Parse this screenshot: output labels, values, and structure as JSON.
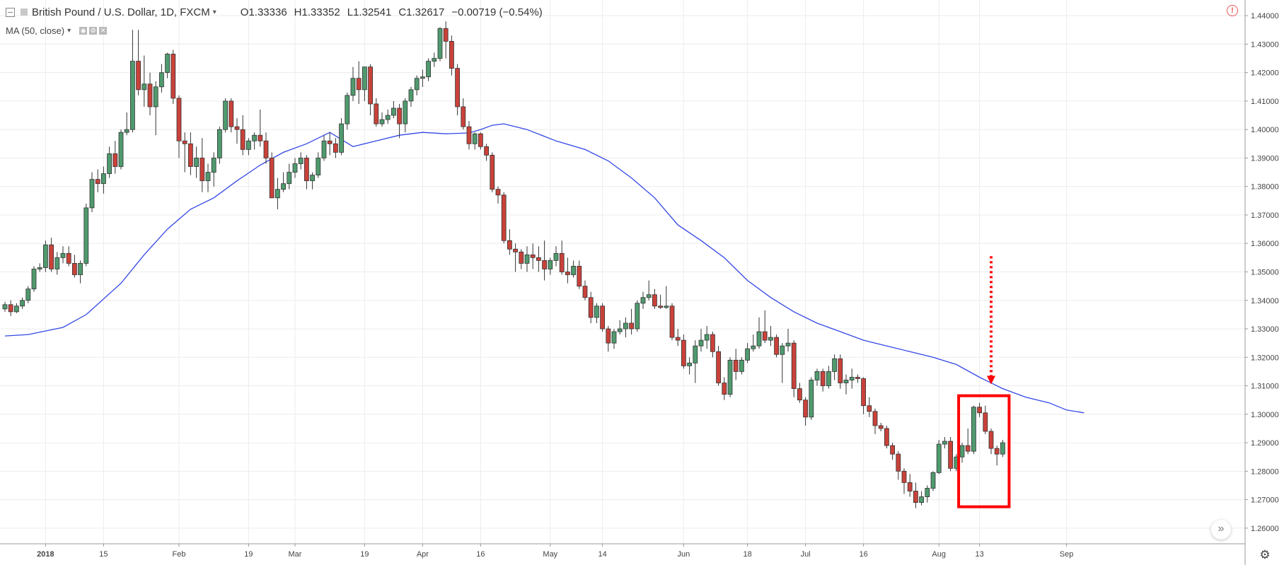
{
  "legend": {
    "symbol": "British Pound / U.S. Dollar, 1D, FXCM",
    "open": "O1.33336",
    "high": "H1.33352",
    "low": "L1.32541",
    "close": "C1.32617",
    "change": "−0.00719 (−0.54%)",
    "indicator": "MA (50, close)"
  },
  "icons": {
    "collapse": "collapse-icon",
    "dropdown": "chevron-down-icon",
    "warning": "warning-icon",
    "scroll": "scroll-to-latest-icon",
    "settings": "gear-icon"
  },
  "colors": {
    "up": "#4f9a6e",
    "down": "#c9423a",
    "ma": "#3347e6",
    "highlight": "#ff0000",
    "grid": "#ececec",
    "axis_text": "#444444"
  },
  "chart_data": {
    "type": "candlestick",
    "pair": "GBP/USD",
    "timeframe": "1D",
    "y_ticks": [
      "1.26000",
      "1.27000",
      "1.28000",
      "1.29000",
      "1.30000",
      "1.31000",
      "1.32000",
      "1.33000",
      "1.34000",
      "1.35000",
      "1.36000",
      "1.37000",
      "1.38000",
      "1.39000",
      "1.40000",
      "1.41000",
      "1.42000",
      "1.43000",
      "1.44000"
    ],
    "ylim": [
      1.2545,
      1.4455
    ],
    "x_labels": [
      {
        "label": "2018",
        "index": 7,
        "bold": true
      },
      {
        "label": "15",
        "index": 17
      },
      {
        "label": "Feb",
        "index": 30
      },
      {
        "label": "19",
        "index": 42
      },
      {
        "label": "Mar",
        "index": 50
      },
      {
        "label": "19",
        "index": 62
      },
      {
        "label": "Apr",
        "index": 72
      },
      {
        "label": "16",
        "index": 82
      },
      {
        "label": "May",
        "index": 94
      },
      {
        "label": "14",
        "index": 103
      },
      {
        "label": "Jun",
        "index": 117
      },
      {
        "label": "18",
        "index": 128
      },
      {
        "label": "Jul",
        "index": 138
      },
      {
        "label": "16",
        "index": 148
      },
      {
        "label": "Aug",
        "index": 161
      },
      {
        "label": "13",
        "index": 168
      },
      {
        "label": "Sep",
        "index": 183
      }
    ],
    "candles": [
      [
        1.337,
        1.3395,
        1.336,
        1.3385
      ],
      [
        1.3385,
        1.34,
        1.3345,
        1.336
      ],
      [
        1.336,
        1.339,
        1.3355,
        1.338
      ],
      [
        1.338,
        1.341,
        1.337,
        1.34
      ],
      [
        1.34,
        1.345,
        1.339,
        1.344
      ],
      [
        1.344,
        1.352,
        1.343,
        1.351
      ],
      [
        1.351,
        1.353,
        1.35,
        1.3515
      ],
      [
        1.3515,
        1.361,
        1.35,
        1.3595
      ],
      [
        1.3595,
        1.362,
        1.35,
        1.351
      ],
      [
        1.351,
        1.357,
        1.349,
        1.355
      ],
      [
        1.355,
        1.359,
        1.353,
        1.3565
      ],
      [
        1.3565,
        1.359,
        1.352,
        1.353
      ],
      [
        1.353,
        1.356,
        1.348,
        1.349
      ],
      [
        1.349,
        1.354,
        1.346,
        1.353
      ],
      [
        1.353,
        1.374,
        1.352,
        1.3725
      ],
      [
        1.3725,
        1.385,
        1.371,
        1.3825
      ],
      [
        1.3825,
        1.386,
        1.378,
        1.381
      ],
      [
        1.381,
        1.387,
        1.3775,
        1.3845
      ],
      [
        1.3845,
        1.394,
        1.383,
        1.3915
      ],
      [
        1.3915,
        1.396,
        1.3845,
        1.387
      ],
      [
        1.387,
        1.4,
        1.386,
        1.399
      ],
      [
        1.399,
        1.406,
        1.398,
        1.4
      ],
      [
        1.4,
        1.435,
        1.399,
        1.424
      ],
      [
        1.424,
        1.435,
        1.412,
        1.414
      ],
      [
        1.414,
        1.426,
        1.408,
        1.416
      ],
      [
        1.416,
        1.42,
        1.405,
        1.408
      ],
      [
        1.408,
        1.417,
        1.398,
        1.415
      ],
      [
        1.415,
        1.423,
        1.413,
        1.42
      ],
      [
        1.42,
        1.427,
        1.418,
        1.4265
      ],
      [
        1.4265,
        1.428,
        1.409,
        1.411
      ],
      [
        1.411,
        1.412,
        1.39,
        1.396
      ],
      [
        1.396,
        1.399,
        1.385,
        1.395
      ],
      [
        1.395,
        1.399,
        1.384,
        1.387
      ],
      [
        1.387,
        1.394,
        1.383,
        1.39
      ],
      [
        1.39,
        1.397,
        1.378,
        1.382
      ],
      [
        1.382,
        1.388,
        1.378,
        1.385
      ],
      [
        1.385,
        1.392,
        1.38,
        1.39
      ],
      [
        1.39,
        1.401,
        1.388,
        1.4
      ],
      [
        1.4,
        1.411,
        1.399,
        1.41
      ],
      [
        1.41,
        1.411,
        1.399,
        1.401
      ],
      [
        1.401,
        1.404,
        1.395,
        1.4
      ],
      [
        1.4,
        1.405,
        1.391,
        1.393
      ],
      [
        1.393,
        1.397,
        1.391,
        1.396
      ],
      [
        1.396,
        1.399,
        1.393,
        1.398
      ],
      [
        1.398,
        1.407,
        1.394,
        1.396
      ],
      [
        1.396,
        1.399,
        1.388,
        1.39
      ],
      [
        1.39,
        1.392,
        1.376,
        1.376
      ],
      [
        1.376,
        1.383,
        1.372,
        1.379
      ],
      [
        1.379,
        1.385,
        1.378,
        1.381
      ],
      [
        1.381,
        1.388,
        1.379,
        1.385
      ],
      [
        1.385,
        1.39,
        1.383,
        1.388
      ],
      [
        1.388,
        1.392,
        1.386,
        1.39
      ],
      [
        1.39,
        1.391,
        1.379,
        1.382
      ],
      [
        1.382,
        1.385,
        1.379,
        1.384
      ],
      [
        1.384,
        1.392,
        1.383,
        1.39
      ],
      [
        1.39,
        1.398,
        1.389,
        1.396
      ],
      [
        1.396,
        1.399,
        1.391,
        1.395
      ],
      [
        1.395,
        1.397,
        1.39,
        1.392
      ],
      [
        1.392,
        1.404,
        1.391,
        1.402
      ],
      [
        1.402,
        1.413,
        1.4,
        1.412
      ],
      [
        1.412,
        1.422,
        1.41,
        1.418
      ],
      [
        1.418,
        1.424,
        1.409,
        1.414
      ],
      [
        1.414,
        1.422,
        1.41,
        1.422
      ],
      [
        1.422,
        1.423,
        1.405,
        1.409
      ],
      [
        1.409,
        1.411,
        1.401,
        1.402
      ],
      [
        1.402,
        1.406,
        1.401,
        1.4035
      ],
      [
        1.4035,
        1.407,
        1.402,
        1.405
      ],
      [
        1.405,
        1.41,
        1.404,
        1.4075
      ],
      [
        1.4075,
        1.409,
        1.397,
        1.402
      ],
      [
        1.402,
        1.411,
        1.399,
        1.41
      ],
      [
        1.41,
        1.415,
        1.408,
        1.414
      ],
      [
        1.414,
        1.419,
        1.412,
        1.418
      ],
      [
        1.418,
        1.421,
        1.415,
        1.4185
      ],
      [
        1.4185,
        1.425,
        1.417,
        1.424
      ],
      [
        1.424,
        1.427,
        1.422,
        1.425
      ],
      [
        1.425,
        1.436,
        1.424,
        1.4355
      ],
      [
        1.4355,
        1.438,
        1.425,
        1.431
      ],
      [
        1.431,
        1.433,
        1.419,
        1.4215
      ],
      [
        1.4215,
        1.423,
        1.405,
        1.408
      ],
      [
        1.408,
        1.411,
        1.4,
        1.401
      ],
      [
        1.401,
        1.403,
        1.393,
        1.395
      ],
      [
        1.395,
        1.399,
        1.393,
        1.3985
      ],
      [
        1.3985,
        1.399,
        1.393,
        1.394
      ],
      [
        1.394,
        1.395,
        1.389,
        1.391
      ],
      [
        1.391,
        1.392,
        1.378,
        1.379
      ],
      [
        1.379,
        1.38,
        1.374,
        1.377
      ],
      [
        1.377,
        1.378,
        1.36,
        1.361
      ],
      [
        1.361,
        1.365,
        1.356,
        1.358
      ],
      [
        1.358,
        1.36,
        1.35,
        1.357
      ],
      [
        1.357,
        1.358,
        1.351,
        1.353
      ],
      [
        1.353,
        1.359,
        1.35,
        1.356
      ],
      [
        1.356,
        1.36,
        1.351,
        1.355
      ],
      [
        1.355,
        1.359,
        1.35,
        1.354
      ],
      [
        1.354,
        1.361,
        1.347,
        1.351
      ],
      [
        1.351,
        1.355,
        1.349,
        1.354
      ],
      [
        1.354,
        1.359,
        1.352,
        1.3565
      ],
      [
        1.3565,
        1.361,
        1.349,
        1.35
      ],
      [
        1.35,
        1.355,
        1.346,
        1.349
      ],
      [
        1.349,
        1.354,
        1.348,
        1.352
      ],
      [
        1.352,
        1.354,
        1.344,
        1.345
      ],
      [
        1.345,
        1.347,
        1.34,
        1.341
      ],
      [
        1.341,
        1.343,
        1.332,
        1.334
      ],
      [
        1.334,
        1.339,
        1.332,
        1.338
      ],
      [
        1.338,
        1.339,
        1.329,
        1.33
      ],
      [
        1.33,
        1.331,
        1.322,
        1.325
      ],
      [
        1.325,
        1.33,
        1.323,
        1.329
      ],
      [
        1.329,
        1.333,
        1.328,
        1.33
      ],
      [
        1.33,
        1.334,
        1.327,
        1.332
      ],
      [
        1.332,
        1.337,
        1.328,
        1.33
      ],
      [
        1.33,
        1.34,
        1.329,
        1.339
      ],
      [
        1.339,
        1.343,
        1.337,
        1.341
      ],
      [
        1.341,
        1.347,
        1.34,
        1.342
      ],
      [
        1.342,
        1.344,
        1.337,
        1.338
      ],
      [
        1.338,
        1.342,
        1.337,
        1.3375
      ],
      [
        1.3375,
        1.345,
        1.337,
        1.338
      ],
      [
        1.338,
        1.339,
        1.326,
        1.327
      ],
      [
        1.327,
        1.33,
        1.324,
        1.326
      ],
      [
        1.326,
        1.328,
        1.316,
        1.317
      ],
      [
        1.317,
        1.32,
        1.314,
        1.318
      ],
      [
        1.318,
        1.326,
        1.311,
        1.324
      ],
      [
        1.324,
        1.33,
        1.322,
        1.326
      ],
      [
        1.326,
        1.331,
        1.323,
        1.328
      ],
      [
        1.328,
        1.329,
        1.32,
        1.322
      ],
      [
        1.322,
        1.324,
        1.31,
        1.311
      ],
      [
        1.311,
        1.313,
        1.305,
        1.307
      ],
      [
        1.307,
        1.32,
        1.306,
        1.319
      ],
      [
        1.319,
        1.323,
        1.312,
        1.315
      ],
      [
        1.315,
        1.32,
        1.314,
        1.319
      ],
      [
        1.319,
        1.325,
        1.318,
        1.323
      ],
      [
        1.323,
        1.328,
        1.322,
        1.324
      ],
      [
        1.324,
        1.334,
        1.323,
        1.329
      ],
      [
        1.329,
        1.3365,
        1.325,
        1.326
      ],
      [
        1.326,
        1.331,
        1.324,
        1.327
      ],
      [
        1.327,
        1.328,
        1.32,
        1.321
      ],
      [
        1.321,
        1.325,
        1.311,
        1.324
      ],
      [
        1.324,
        1.33,
        1.322,
        1.325
      ],
      [
        1.325,
        1.326,
        1.306,
        1.309
      ],
      [
        1.309,
        1.311,
        1.304,
        1.305
      ],
      [
        1.305,
        1.306,
        1.296,
        1.299
      ],
      [
        1.299,
        1.313,
        1.298,
        1.312
      ],
      [
        1.312,
        1.316,
        1.31,
        1.315
      ],
      [
        1.315,
        1.316,
        1.308,
        1.31
      ],
      [
        1.31,
        1.317,
        1.309,
        1.315
      ],
      [
        1.315,
        1.321,
        1.312,
        1.3195
      ],
      [
        1.3195,
        1.321,
        1.309,
        1.311
      ],
      [
        1.311,
        1.314,
        1.307,
        1.312
      ],
      [
        1.312,
        1.316,
        1.309,
        1.313
      ],
      [
        1.313,
        1.314,
        1.311,
        1.3125
      ],
      [
        1.3125,
        1.313,
        1.3,
        1.303
      ],
      [
        1.303,
        1.306,
        1.299,
        1.301
      ],
      [
        1.301,
        1.302,
        1.293,
        1.296
      ],
      [
        1.296,
        1.297,
        1.294,
        1.295
      ],
      [
        1.295,
        1.296,
        1.288,
        1.289
      ],
      [
        1.289,
        1.29,
        1.284,
        1.286
      ],
      [
        1.286,
        1.287,
        1.277,
        1.28
      ],
      [
        1.28,
        1.281,
        1.272,
        1.276
      ],
      [
        1.276,
        1.279,
        1.271,
        1.273
      ],
      [
        1.273,
        1.276,
        1.267,
        1.269
      ],
      [
        1.269,
        1.273,
        1.268,
        1.271
      ],
      [
        1.271,
        1.275,
        1.269,
        1.274
      ],
      [
        1.274,
        1.28,
        1.273,
        1.2795
      ],
      [
        1.2795,
        1.291,
        1.279,
        1.2895
      ],
      [
        1.2895,
        1.292,
        1.288,
        1.2905
      ],
      [
        1.2905,
        1.292,
        1.28,
        1.281
      ],
      [
        1.281,
        1.286,
        1.28,
        1.285
      ],
      [
        1.285,
        1.29,
        1.283,
        1.289
      ],
      [
        1.289,
        1.295,
        1.286,
        1.287
      ],
      [
        1.287,
        1.303,
        1.286,
        1.3025
      ],
      [
        1.3025,
        1.304,
        1.299,
        1.3005
      ],
      [
        1.3005,
        1.303,
        1.293,
        1.294
      ],
      [
        1.294,
        1.295,
        1.286,
        1.288
      ],
      [
        1.288,
        1.289,
        1.282,
        1.286
      ],
      [
        1.286,
        1.291,
        1.285,
        1.29
      ]
    ],
    "ma": {
      "name": "MA (50, close)",
      "points": [
        [
          0,
          1.3275
        ],
        [
          4,
          1.328
        ],
        [
          10,
          1.3305
        ],
        [
          14,
          1.335
        ],
        [
          20,
          1.346
        ],
        [
          24,
          1.356
        ],
        [
          28,
          1.365
        ],
        [
          32,
          1.372
        ],
        [
          36,
          1.376
        ],
        [
          40,
          1.382
        ],
        [
          44,
          1.3875
        ],
        [
          48,
          1.392
        ],
        [
          52,
          1.395
        ],
        [
          56,
          1.399
        ],
        [
          60,
          1.394
        ],
        [
          64,
          1.396
        ],
        [
          68,
          1.398
        ],
        [
          72,
          1.399
        ],
        [
          76,
          1.3985
        ],
        [
          80,
          1.3988
        ],
        [
          82,
          1.4
        ],
        [
          84,
          1.4015
        ],
        [
          86,
          1.402
        ],
        [
          90,
          1.4
        ],
        [
          95,
          1.396
        ],
        [
          100,
          1.393
        ],
        [
          104,
          1.389
        ],
        [
          108,
          1.383
        ],
        [
          112,
          1.376
        ],
        [
          116,
          1.3665
        ],
        [
          120,
          1.361
        ],
        [
          124,
          1.355
        ],
        [
          128,
          1.347
        ],
        [
          132,
          1.341
        ],
        [
          136,
          1.336
        ],
        [
          140,
          1.332
        ],
        [
          144,
          1.329
        ],
        [
          148,
          1.326
        ],
        [
          152,
          1.324
        ],
        [
          156,
          1.322
        ],
        [
          160,
          1.32
        ],
        [
          164,
          1.3175
        ],
        [
          168,
          1.313
        ],
        [
          172,
          1.309
        ],
        [
          176,
          1.306
        ],
        [
          180,
          1.304
        ],
        [
          183,
          1.3015
        ],
        [
          186,
          1.3005
        ]
      ]
    },
    "annotations": [
      {
        "type": "rectangle",
        "x0": 164.4,
        "x1": 173.1,
        "y0": 1.3065,
        "y1": 1.2675,
        "color": "#ff0000"
      },
      {
        "type": "arrow",
        "x": 170,
        "y_from": 1.3555,
        "y_to": 1.3105,
        "style": "dotted",
        "color": "#ff0000"
      }
    ]
  }
}
